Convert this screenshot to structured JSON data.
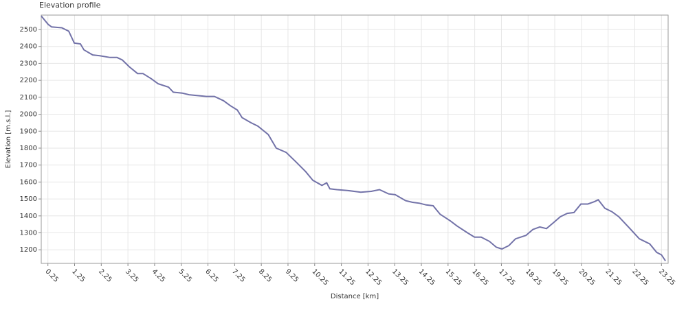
{
  "chart_data": {
    "type": "line",
    "title": "Elevation profile",
    "x_label": "Distance [km]",
    "y_label": "Elevation [m.s.l.]",
    "xlim": [
      0,
      23.5
    ],
    "ylim": [
      1120,
      2585
    ],
    "xticks": [
      0.25,
      1.25,
      2.25,
      3.25,
      4.25,
      5.25,
      6.25,
      7.25,
      8.25,
      9.25,
      10.25,
      11.25,
      12.25,
      13.25,
      14.25,
      15.25,
      16.25,
      17.25,
      18.25,
      19.25,
      20.25,
      21.25,
      22.25,
      23.25
    ],
    "yticks": [
      1200,
      1300,
      1400,
      1500,
      1600,
      1700,
      1800,
      1900,
      2000,
      2100,
      2200,
      2300,
      2400,
      2500
    ],
    "grid": true,
    "series": [
      {
        "name": "Elevation",
        "color": "#7272a8",
        "x": [
          0,
          0.26,
          0.39,
          0.77,
          1.03,
          1.24,
          1.47,
          1.6,
          1.93,
          2.19,
          2.58,
          2.84,
          3.04,
          3.3,
          3.61,
          3.81,
          4.12,
          4.38,
          4.77,
          4.95,
          5.28,
          5.54,
          6.19,
          6.49,
          6.83,
          7.09,
          7.35,
          7.53,
          7.86,
          8.12,
          8.51,
          8.81,
          9.18,
          9.54,
          9.92,
          10.18,
          10.52,
          10.7,
          10.82,
          11.08,
          11.47,
          11.98,
          12.37,
          12.68,
          13.02,
          13.27,
          13.66,
          13.92,
          14.18,
          14.43,
          14.69,
          14.95,
          15.34,
          15.59,
          15.98,
          16.24,
          16.49,
          16.8,
          17.06,
          17.27,
          17.53,
          17.78,
          18.17,
          18.43,
          18.69,
          18.94,
          19.2,
          19.46,
          19.72,
          19.97,
          20.23,
          20.49,
          20.75,
          20.88,
          21.13,
          21.39,
          21.65,
          22.04,
          22.42,
          22.81,
          23.07,
          23.25,
          23.4
        ],
        "values": [
          2580,
          2530,
          2515,
          2510,
          2490,
          2420,
          2415,
          2380,
          2350,
          2345,
          2335,
          2335,
          2320,
          2280,
          2240,
          2240,
          2210,
          2180,
          2160,
          2130,
          2125,
          2115,
          2105,
          2105,
          2080,
          2050,
          2025,
          1980,
          1950,
          1930,
          1880,
          1800,
          1775,
          1720,
          1660,
          1610,
          1580,
          1595,
          1560,
          1555,
          1550,
          1540,
          1545,
          1555,
          1530,
          1525,
          1490,
          1480,
          1475,
          1465,
          1460,
          1410,
          1370,
          1340,
          1300,
          1275,
          1275,
          1250,
          1215,
          1205,
          1225,
          1265,
          1285,
          1320,
          1335,
          1325,
          1360,
          1395,
          1415,
          1420,
          1470,
          1470,
          1485,
          1495,
          1445,
          1425,
          1395,
          1330,
          1265,
          1235,
          1185,
          1170,
          1135
        ]
      }
    ]
  }
}
